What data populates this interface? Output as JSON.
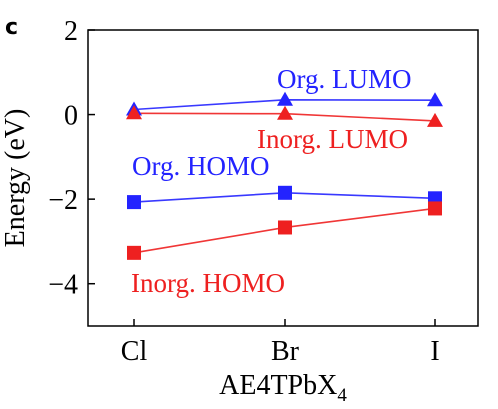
{
  "panel_label": "c",
  "chart_data": {
    "type": "line",
    "categories": [
      "Cl",
      "Br",
      "I"
    ],
    "xlabel_main": "AE4TPbX",
    "xlabel_sub": "4",
    "ylabel": "Energy (eV)",
    "ylim": [
      -5,
      2
    ],
    "yticks": [
      "2",
      "0",
      "−2",
      "−4"
    ],
    "ytick_values": [
      2,
      0,
      -2,
      -4
    ],
    "series": [
      {
        "name": "Org. LUMO",
        "color": "#2323ff",
        "marker": "triangle",
        "values": [
          0.12,
          0.35,
          0.34
        ]
      },
      {
        "name": "Inorg. LUMO",
        "color": "#ee2020",
        "marker": "triangle",
        "values": [
          0.03,
          0.02,
          -0.15
        ]
      },
      {
        "name": "Org. HOMO",
        "color": "#2323ff",
        "marker": "square",
        "values": [
          -2.07,
          -1.85,
          -1.98
        ]
      },
      {
        "name": "Inorg. HOMO",
        "color": "#ee2020",
        "marker": "square",
        "values": [
          -3.27,
          -2.67,
          -2.22
        ]
      }
    ]
  }
}
